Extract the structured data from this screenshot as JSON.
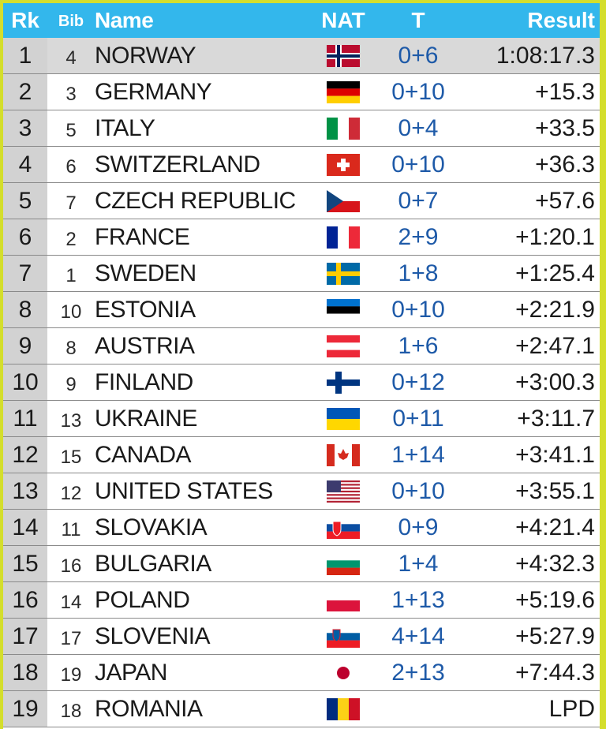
{
  "header": {
    "rk": "Rk",
    "bib": "Bib",
    "name": "Name",
    "nat": "NAT",
    "t": "T",
    "result": "Result"
  },
  "rows": [
    {
      "rk": "1",
      "bib": "4",
      "name": "NORWAY",
      "flag": "norway-flag",
      "t": "0+6",
      "result": "1:08:17.3"
    },
    {
      "rk": "2",
      "bib": "3",
      "name": "GERMANY",
      "flag": "germany-flag",
      "t": "0+10",
      "result": "+15.3"
    },
    {
      "rk": "3",
      "bib": "5",
      "name": "ITALY",
      "flag": "italy-flag",
      "t": "0+4",
      "result": "+33.5"
    },
    {
      "rk": "4",
      "bib": "6",
      "name": "SWITZERLAND",
      "flag": "switzerland-flag",
      "t": "0+10",
      "result": "+36.3"
    },
    {
      "rk": "5",
      "bib": "7",
      "name": "CZECH REPUBLIC",
      "flag": "czech-flag",
      "t": "0+7",
      "result": "+57.6"
    },
    {
      "rk": "6",
      "bib": "2",
      "name": "FRANCE",
      "flag": "france-flag",
      "t": "2+9",
      "result": "+1:20.1"
    },
    {
      "rk": "7",
      "bib": "1",
      "name": "SWEDEN",
      "flag": "sweden-flag",
      "t": "1+8",
      "result": "+1:25.4"
    },
    {
      "rk": "8",
      "bib": "10",
      "name": "ESTONIA",
      "flag": "estonia-flag",
      "t": "0+10",
      "result": "+2:21.9"
    },
    {
      "rk": "9",
      "bib": "8",
      "name": "AUSTRIA",
      "flag": "austria-flag",
      "t": "1+6",
      "result": "+2:47.1"
    },
    {
      "rk": "10",
      "bib": "9",
      "name": "FINLAND",
      "flag": "finland-flag",
      "t": "0+12",
      "result": "+3:00.3"
    },
    {
      "rk": "11",
      "bib": "13",
      "name": "UKRAINE",
      "flag": "ukraine-flag",
      "t": "0+11",
      "result": "+3:11.7"
    },
    {
      "rk": "12",
      "bib": "15",
      "name": "CANADA",
      "flag": "canada-flag",
      "t": "1+14",
      "result": "+3:41.1"
    },
    {
      "rk": "13",
      "bib": "12",
      "name": "UNITED STATES",
      "flag": "usa-flag",
      "t": "0+10",
      "result": "+3:55.1"
    },
    {
      "rk": "14",
      "bib": "11",
      "name": "SLOVAKIA",
      "flag": "slovakia-flag",
      "t": "0+9",
      "result": "+4:21.4"
    },
    {
      "rk": "15",
      "bib": "16",
      "name": "BULGARIA",
      "flag": "bulgaria-flag",
      "t": "1+4",
      "result": "+4:32.3"
    },
    {
      "rk": "16",
      "bib": "14",
      "name": "POLAND",
      "flag": "poland-flag",
      "t": "1+13",
      "result": "+5:19.6"
    },
    {
      "rk": "17",
      "bib": "17",
      "name": "SLOVENIA",
      "flag": "slovenia-flag",
      "t": "4+14",
      "result": "+5:27.9"
    },
    {
      "rk": "18",
      "bib": "19",
      "name": "JAPAN",
      "flag": "japan-flag",
      "t": "2+13",
      "result": "+7:44.3"
    },
    {
      "rk": "19",
      "bib": "18",
      "name": "ROMANIA",
      "flag": "romania-flag",
      "t": "",
      "result": "LPD"
    }
  ],
  "colors": {
    "header_bg": "#33b7ec",
    "border": "#d4de2c",
    "shooting_text": "#1e5aa8",
    "rank_bg": "#d2d2d2"
  }
}
